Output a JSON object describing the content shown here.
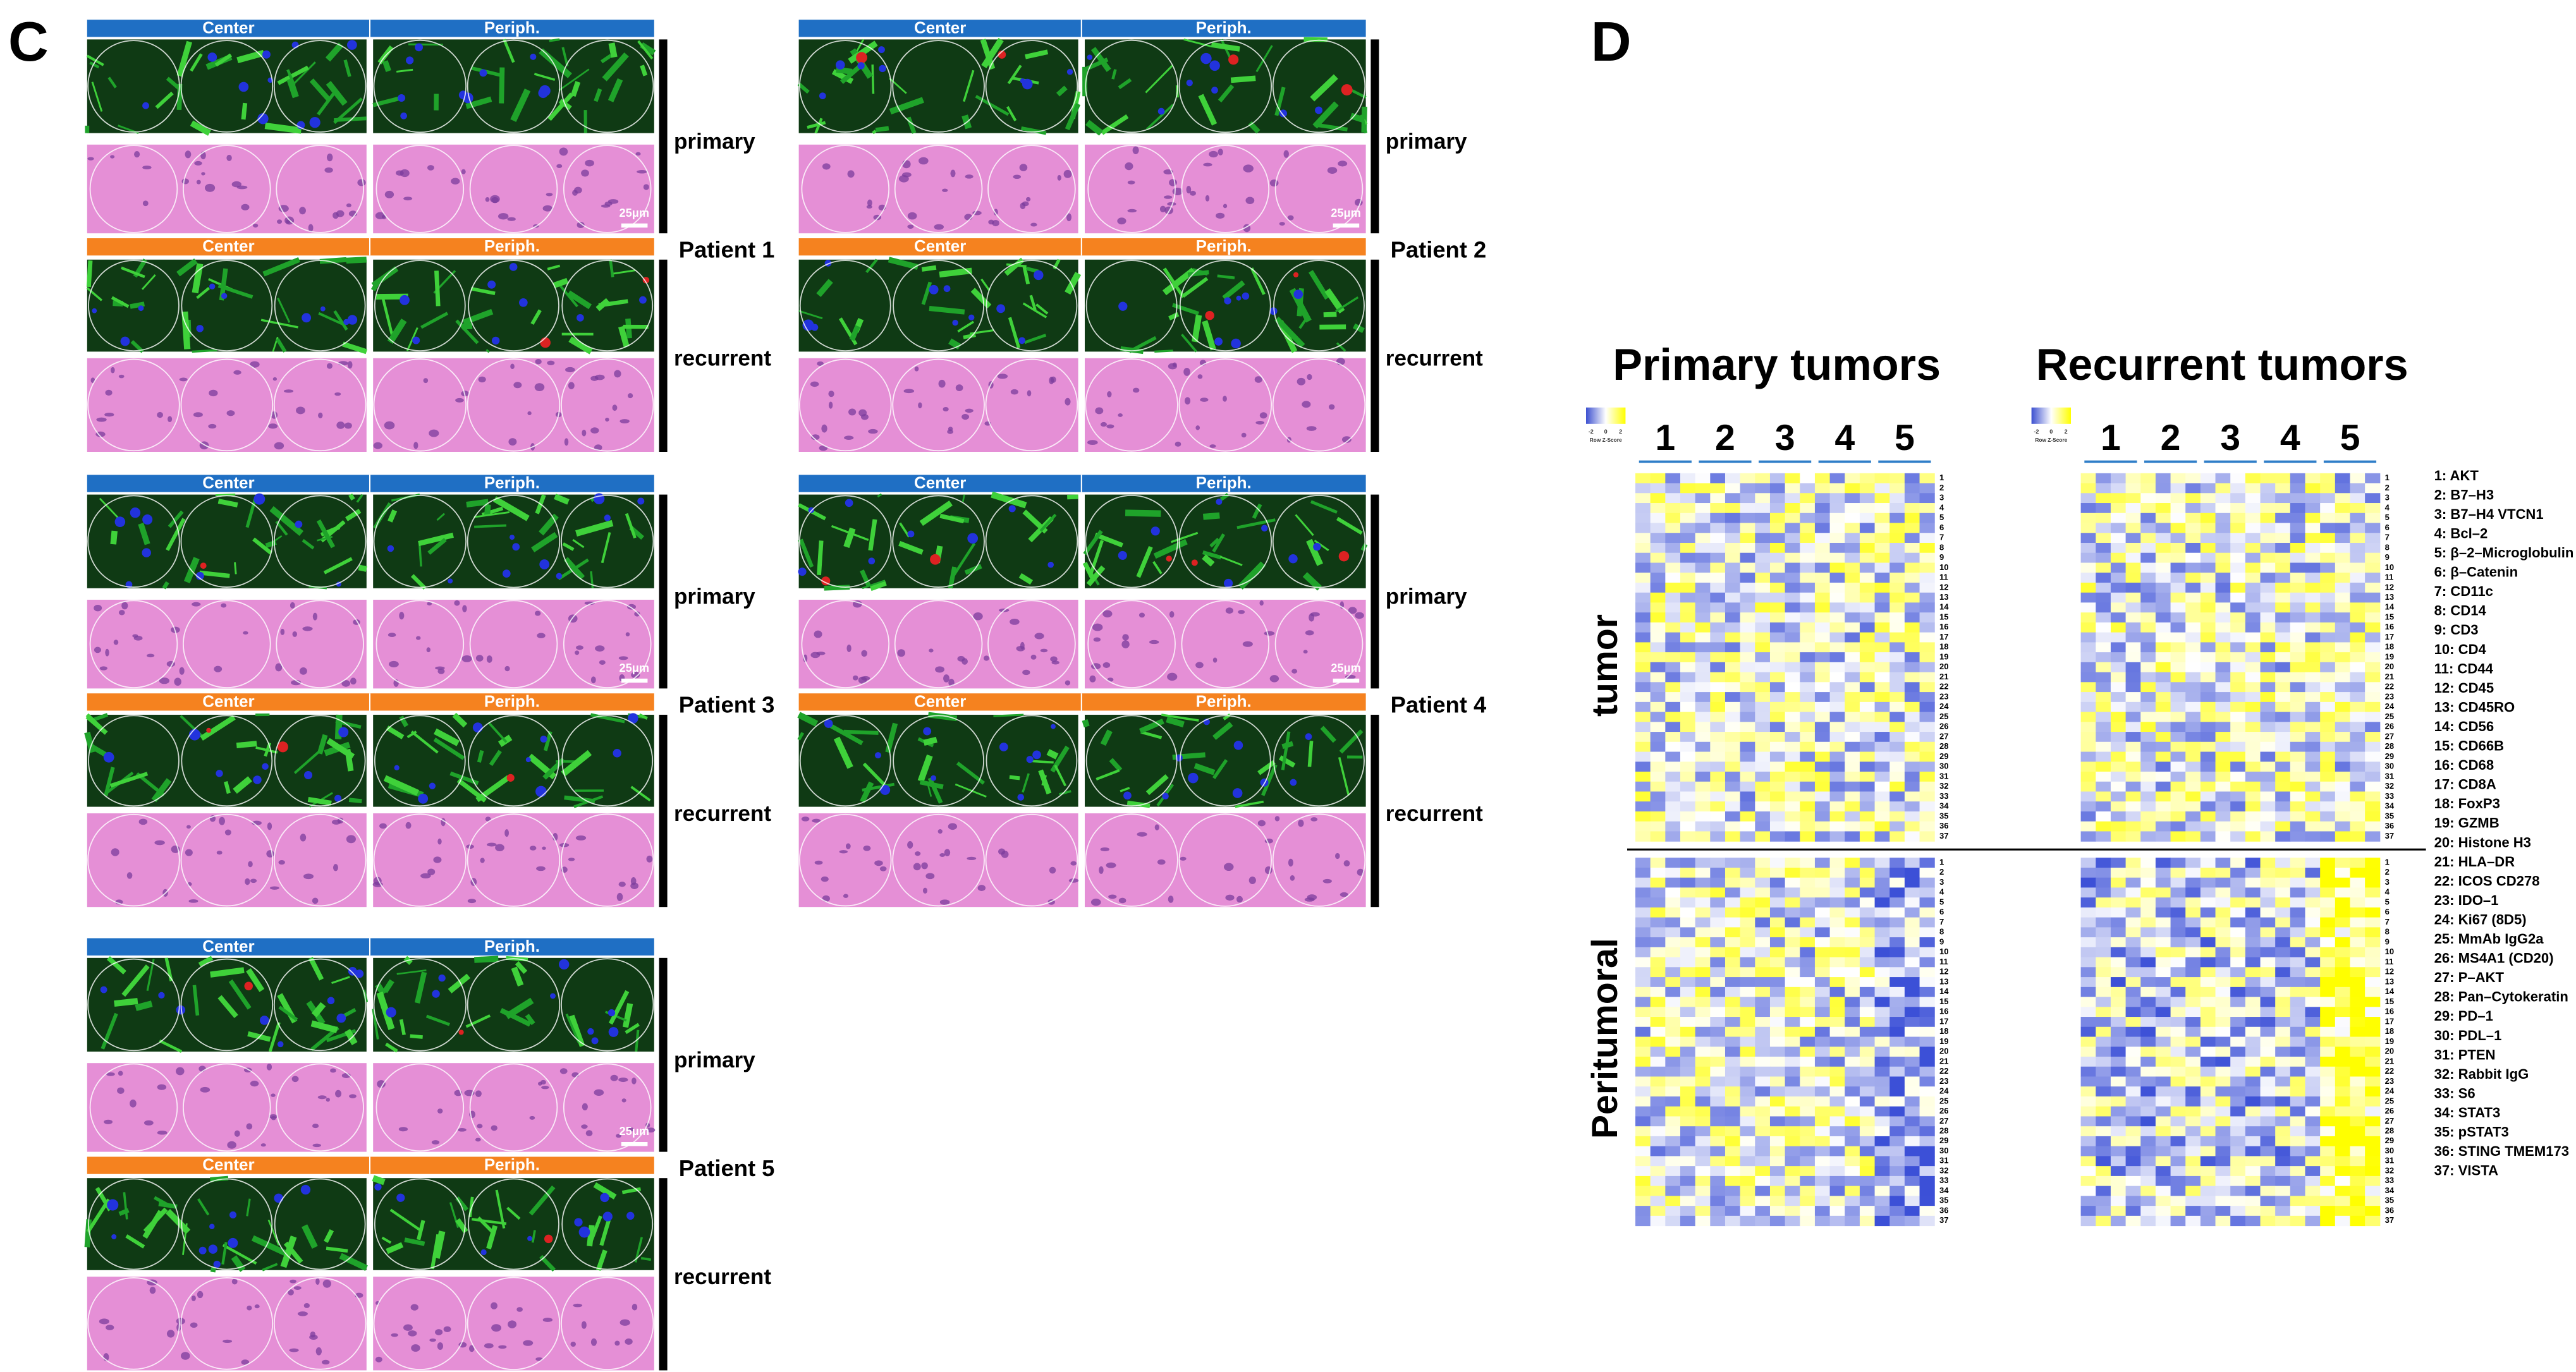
{
  "panel_c": {
    "label": "C",
    "patients": [
      {
        "label": "Patient 1",
        "groups": [
          {
            "label": "primary",
            "headers": [
              "Center",
              "Periph."
            ],
            "scale_bar": "25μm"
          },
          {
            "label": "recurrent",
            "headers": [
              "Center",
              "Periph."
            ]
          }
        ]
      },
      {
        "label": "Patient 2",
        "groups": [
          {
            "label": "primary",
            "headers": [
              "Center",
              "Periph."
            ],
            "scale_bar": "25μm"
          },
          {
            "label": "recurrent",
            "headers": [
              "Center",
              "Periph."
            ]
          }
        ]
      },
      {
        "label": "Patient 3",
        "groups": [
          {
            "label": "primary",
            "headers": [
              "Center",
              "Periph."
            ],
            "scale_bar": "25μm"
          },
          {
            "label": "recurrent",
            "headers": [
              "Center",
              "Periph."
            ]
          }
        ]
      },
      {
        "label": "Patient 4",
        "groups": [
          {
            "label": "primary",
            "headers": [
              "Center",
              "Periph."
            ],
            "scale_bar": "25μm"
          },
          {
            "label": "recurrent",
            "headers": [
              "Center",
              "Periph."
            ]
          }
        ]
      },
      {
        "label": "Patient 5",
        "groups": [
          {
            "label": "primary",
            "headers": [
              "Center",
              "Periph."
            ],
            "scale_bar": "25μm"
          },
          {
            "label": "recurrent",
            "headers": [
              "Center",
              "Periph."
            ]
          }
        ]
      }
    ]
  },
  "panel_d": {
    "label": "D",
    "heatmaps": [
      {
        "title": "Primary tumors",
        "groups": [
          "1",
          "2",
          "3",
          "4",
          "5"
        ]
      },
      {
        "title": "Recurrent  tumors",
        "groups": [
          "1",
          "2",
          "3",
          "4",
          "5"
        ]
      }
    ],
    "key": {
      "title": "Row Z-Score",
      "ticks": [
        "-2",
        "0",
        "2"
      ]
    },
    "row_groups": [
      "tumor",
      "Peritumoral"
    ],
    "row_numbers": [
      "1",
      "2",
      "3",
      "4",
      "5",
      "6",
      "7",
      "8",
      "9",
      "10",
      "11",
      "12",
      "13",
      "14",
      "15",
      "16",
      "17",
      "18",
      "19",
      "20",
      "21",
      "22",
      "23",
      "24",
      "25",
      "26",
      "27",
      "28",
      "29",
      "30",
      "31",
      "32",
      "33",
      "34",
      "35",
      "36",
      "37"
    ],
    "markers": [
      "1: AKT",
      "2: B7–H3",
      "3: B7–H4 VTCN1",
      "4: Bcl–2",
      "5: β–2–Microglobulin",
      "6: β–Catenin",
      "7: CD11c",
      "8: CD14",
      "9: CD3",
      "10: CD4",
      "11: CD44",
      "12: CD45",
      "13: CD45RO",
      "14: CD56",
      "15: CD66B",
      "16: CD68",
      "17: CD8A",
      "18: FoxP3",
      "19: GZMB",
      "20: Histone H3",
      "21: HLA–DR",
      "22: ICOS CD278",
      "23: IDO–1",
      "24: Ki67 (8D5)",
      "25: MmAb IgG2a",
      "26: MS4A1 (CD20)",
      "27: P–AKT",
      "28: Pan–Cytokeratin",
      "29: PD–1",
      "30: PDL–1",
      "31: PTEN",
      "32: Rabbit IgG",
      "33: S6",
      "34: STAT3",
      "35: pSTAT3",
      "36: STING TMEM173",
      "37: VISTA"
    ]
  }
}
